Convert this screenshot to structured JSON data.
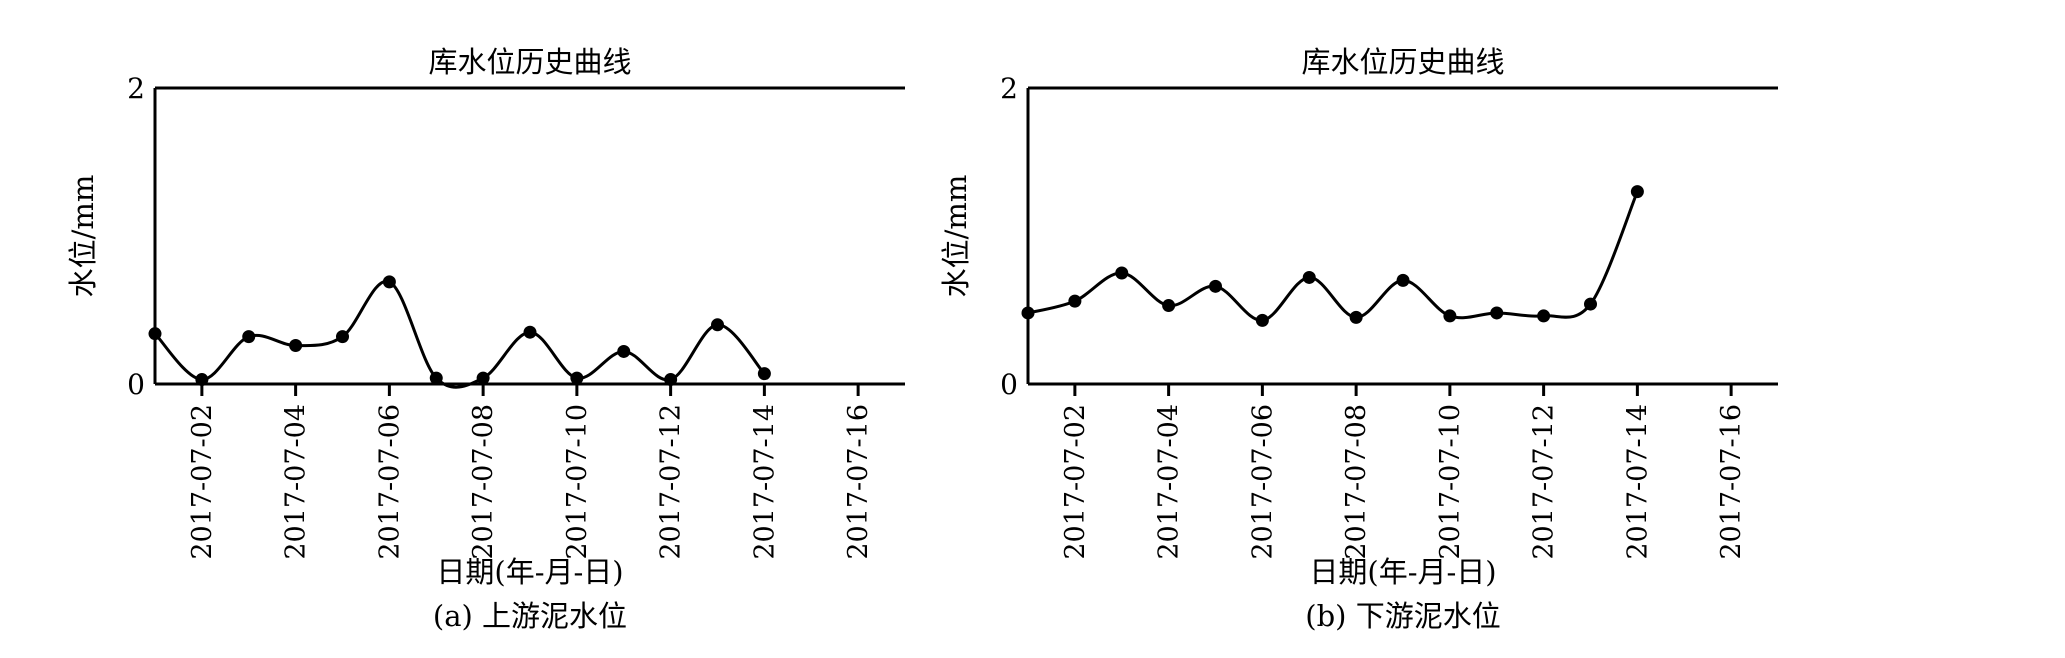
{
  "chart_data": [
    {
      "type": "line",
      "title": "库水位历史曲线",
      "xlabel": "日期(年-月-日)",
      "ylabel": "水位/mm",
      "caption": "(a) 上游泥水位",
      "ylim": [
        0,
        2
      ],
      "y_ticks": [
        "0",
        "2"
      ],
      "xlim": [
        "2017-07-01",
        "2017-07-17"
      ],
      "x_ticks": [
        "2017-07-02",
        "2017-07-04",
        "2017-07-06",
        "2017-07-08",
        "2017-07-10",
        "2017-07-12",
        "2017-07-14",
        "2017-07-16"
      ],
      "grid": false,
      "x": [
        "2017-07-01",
        "2017-07-02",
        "2017-07-03",
        "2017-07-04",
        "2017-07-05",
        "2017-07-06",
        "2017-07-07",
        "2017-07-08",
        "2017-07-09",
        "2017-07-10",
        "2017-07-11",
        "2017-07-12",
        "2017-07-13",
        "2017-07-14"
      ],
      "values": [
        0.34,
        0.03,
        0.32,
        0.26,
        0.32,
        0.69,
        0.04,
        0.04,
        0.35,
        0.04,
        0.22,
        0.03,
        0.4,
        0.07
      ],
      "color": "#000000"
    },
    {
      "type": "line",
      "title": "库水位历史曲线",
      "xlabel": "日期(年-月-日)",
      "ylabel": "水位/mm",
      "caption": "(b) 下游泥水位",
      "ylim": [
        0,
        2
      ],
      "y_ticks": [
        "0",
        "2"
      ],
      "xlim": [
        "2017-07-01",
        "2017-07-17"
      ],
      "x_ticks": [
        "2017-07-02",
        "2017-07-04",
        "2017-07-06",
        "2017-07-08",
        "2017-07-10",
        "2017-07-12",
        "2017-07-14",
        "2017-07-16"
      ],
      "grid": false,
      "x": [
        "2017-07-01",
        "2017-07-02",
        "2017-07-03",
        "2017-07-04",
        "2017-07-05",
        "2017-07-06",
        "2017-07-07",
        "2017-07-08",
        "2017-07-09",
        "2017-07-10",
        "2017-07-11",
        "2017-07-12",
        "2017-07-13",
        "2017-07-14"
      ],
      "values": [
        0.48,
        0.56,
        0.75,
        0.53,
        0.66,
        0.43,
        0.72,
        0.45,
        0.7,
        0.46,
        0.48,
        0.46,
        0.54,
        1.3
      ],
      "color": "#000000"
    }
  ]
}
